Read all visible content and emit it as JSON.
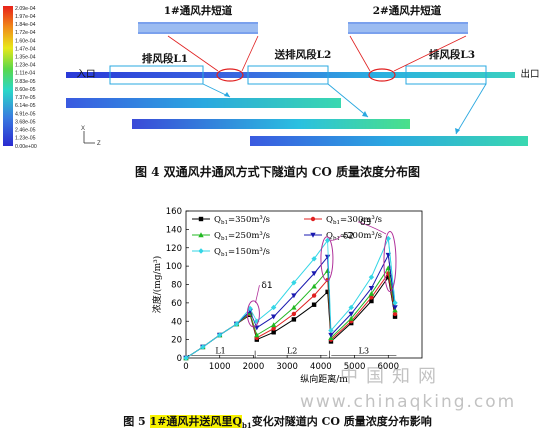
{
  "figure4": {
    "caption": "图 4 双通风井通风方式下隧道内 CO 质量浓度分布图",
    "colorbar_ticks": [
      "2.09e-04",
      "1.97e-04",
      "1.84e-04",
      "1.72e-04",
      "1.60e-04",
      "1.47e-04",
      "1.35e-04",
      "1.23e-04",
      "1.11e-04",
      "9.83e-05",
      "8.60e-05",
      "7.37e-05",
      "6.14e-05",
      "4.91e-05",
      "3.68e-05",
      "2.46e-05",
      "1.23e-05",
      "0.00e+00"
    ],
    "labels": {
      "shaft1": "1#通风井短道",
      "shaft2": "2#通风井短道",
      "seg1": "排风段L1",
      "seg2": "送排风段L2",
      "seg3": "排风段L3",
      "entrance": "入口",
      "exit": "出口",
      "axis_x": "X",
      "axis_z": "Z"
    }
  },
  "figure5": {
    "caption_parts": {
      "pre": "图 5 ",
      "hl1": "1#通风井送风里",
      "q": "Q",
      "qsub": "b1",
      "post": "变化对隧道内 CO 质量浓度分布影响"
    },
    "legend": [
      {
        "label": "Q",
        "sub": "b1",
        "rest": "=350m³/s",
        "color": "#000000"
      },
      {
        "label": "Q",
        "sub": "b1",
        "rest": "=300m³/s",
        "color": "#e02020"
      },
      {
        "label": "Q",
        "sub": "b1",
        "rest": "=250m³/s",
        "color": "#22b822"
      },
      {
        "label": "Q",
        "sub": "b1",
        "rest": "=200m³/s",
        "color": "#1a1ab0"
      },
      {
        "label": "Q",
        "sub": "b1",
        "rest": "=150m³/s",
        "color": "#33d6e6"
      }
    ],
    "annotations": [
      "δ1",
      "δ2",
      "δ3"
    ],
    "segments": [
      "L1",
      "L2",
      "L3"
    ],
    "colors": {
      "ellipse": "#b0309a"
    }
  },
  "chart_data": {
    "type": "line",
    "title": "",
    "xlabel": "纵向距离/m",
    "ylabel": "浓度/(mg/m³)",
    "xlim": [
      0,
      7000
    ],
    "ylim": [
      0,
      160
    ],
    "xticks": [
      0,
      1000,
      2000,
      3000,
      4000,
      5000,
      6000
    ],
    "yticks": [
      0,
      20,
      40,
      60,
      80,
      100,
      120,
      140,
      160
    ],
    "series": [
      {
        "name": "Qb1=350m³/s",
        "x": [
          0,
          500,
          1000,
          1500,
          1900,
          2100,
          2600,
          3200,
          3800,
          4200,
          4300,
          4900,
          5500,
          6000,
          6200
        ],
        "y": [
          0,
          12,
          25,
          37,
          47,
          20,
          28,
          42,
          58,
          72,
          18,
          38,
          62,
          88,
          45
        ]
      },
      {
        "name": "Qb1=300m³/s",
        "x": [
          0,
          500,
          1000,
          1500,
          1900,
          2100,
          2600,
          3200,
          3800,
          4200,
          4300,
          4900,
          5500,
          6000,
          6200
        ],
        "y": [
          0,
          12,
          25,
          37,
          48,
          22,
          32,
          48,
          68,
          85,
          20,
          40,
          66,
          92,
          48
        ]
      },
      {
        "name": "Qb1=250m³/s",
        "x": [
          0,
          500,
          1000,
          1500,
          1900,
          2100,
          2600,
          3200,
          3800,
          4200,
          4300,
          4900,
          5500,
          6000,
          6200
        ],
        "y": [
          0,
          12,
          25,
          37,
          49,
          25,
          36,
          55,
          78,
          95,
          22,
          43,
          70,
          98,
          52
        ]
      },
      {
        "name": "Qb1=200m³/s",
        "x": [
          0,
          500,
          1000,
          1500,
          1900,
          2100,
          2600,
          3200,
          3800,
          4200,
          4300,
          4900,
          5500,
          6000,
          6200
        ],
        "y": [
          0,
          12,
          25,
          37,
          51,
          33,
          45,
          68,
          92,
          110,
          25,
          48,
          76,
          112,
          55
        ]
      },
      {
        "name": "Qb1=150m³/s",
        "x": [
          0,
          500,
          1000,
          1500,
          1900,
          2100,
          2600,
          3200,
          3800,
          4200,
          4300,
          4900,
          5500,
          6000,
          6200
        ],
        "y": [
          0,
          12,
          25,
          37,
          54,
          40,
          55,
          82,
          108,
          128,
          30,
          55,
          88,
          130,
          60
        ]
      }
    ]
  },
  "watermark": {
    "line1": "中国知网",
    "line2": "www.chinaqking.com"
  }
}
